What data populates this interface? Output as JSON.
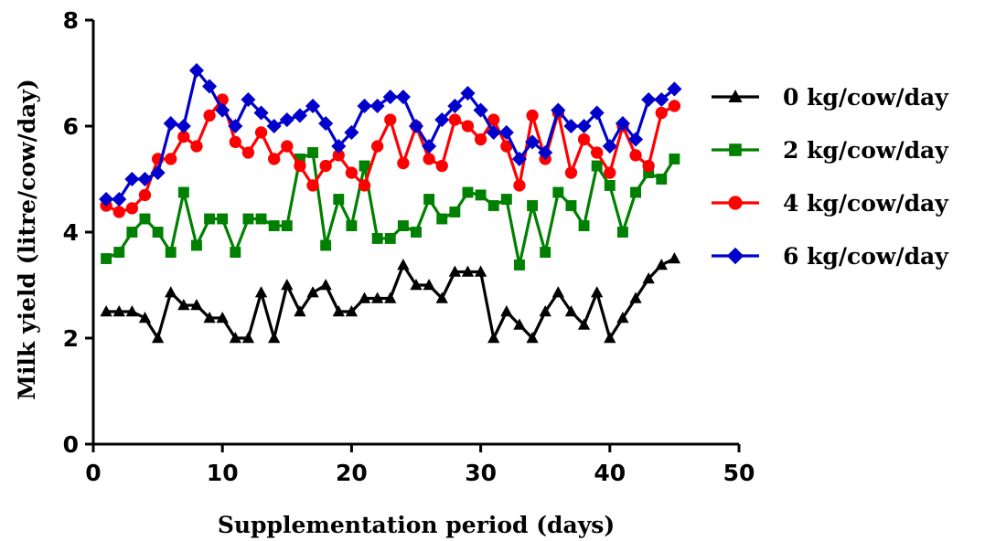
{
  "chart_data": {
    "type": "line",
    "title": "",
    "xlabel": "Supplementation period (days)",
    "ylabel": "Milk yield (litre/cow/day)",
    "xlim": [
      0,
      50
    ],
    "ylim": [
      0,
      8
    ],
    "xticks": [
      0,
      10,
      20,
      30,
      40,
      50
    ],
    "yticks": [
      0,
      2,
      4,
      6,
      8
    ],
    "grid": false,
    "legend_position": "right",
    "x": [
      1,
      2,
      3,
      4,
      5,
      6,
      7,
      8,
      9,
      10,
      11,
      12,
      13,
      14,
      15,
      16,
      17,
      18,
      19,
      20,
      21,
      22,
      23,
      24,
      25,
      26,
      27,
      28,
      29,
      30,
      31,
      32,
      33,
      34,
      35,
      36,
      37,
      38,
      39,
      40,
      41,
      42,
      43,
      44,
      45
    ],
    "series": [
      {
        "name": "0 kg/cow/day",
        "color": "#000000",
        "marker": "triangle",
        "values": [
          2.5,
          2.5,
          2.5,
          2.38,
          2.0,
          2.86,
          2.62,
          2.62,
          2.38,
          2.38,
          2.0,
          2.0,
          2.86,
          2.0,
          3.0,
          2.5,
          2.86,
          3.0,
          2.5,
          2.5,
          2.75,
          2.75,
          2.75,
          3.38,
          3.0,
          3.0,
          2.75,
          3.25,
          3.25,
          3.25,
          2.0,
          2.5,
          2.25,
          2.0,
          2.5,
          2.86,
          2.5,
          2.25,
          2.86,
          2.0,
          2.38,
          2.75,
          3.12,
          3.38,
          3.5
        ]
      },
      {
        "name": "2 kg/cow/day",
        "color": "#008000",
        "marker": "square",
        "values": [
          3.5,
          3.62,
          4.0,
          4.25,
          4.0,
          3.62,
          4.75,
          3.75,
          4.25,
          4.25,
          3.62,
          4.25,
          4.25,
          4.12,
          4.12,
          5.38,
          5.5,
          3.75,
          4.62,
          4.12,
          5.25,
          3.88,
          3.88,
          4.12,
          4.0,
          4.62,
          4.25,
          4.38,
          4.75,
          4.7,
          4.5,
          4.62,
          3.38,
          4.5,
          3.62,
          4.75,
          4.5,
          4.12,
          5.25,
          4.88,
          4.0,
          4.75,
          5.12,
          5.0,
          5.38
        ]
      },
      {
        "name": "4 kg/cow/day",
        "color": "#ff0000",
        "marker": "circle",
        "values": [
          4.5,
          4.38,
          4.45,
          4.7,
          5.38,
          5.38,
          5.8,
          5.62,
          6.2,
          6.5,
          5.7,
          5.5,
          5.88,
          5.38,
          5.62,
          5.25,
          4.88,
          5.25,
          5.45,
          5.12,
          4.88,
          5.62,
          6.12,
          5.3,
          6.0,
          5.38,
          5.25,
          6.12,
          6.0,
          5.75,
          6.12,
          5.62,
          4.88,
          6.2,
          5.38,
          6.25,
          5.12,
          5.75,
          5.5,
          5.12,
          6.0,
          5.45,
          5.25,
          6.25,
          6.38
        ]
      },
      {
        "name": "6 kg/cow/day",
        "color": "#0000cc",
        "marker": "diamond",
        "values": [
          4.62,
          4.62,
          5.0,
          5.0,
          5.12,
          6.05,
          6.0,
          7.05,
          6.75,
          6.3,
          6.0,
          6.5,
          6.25,
          6.0,
          6.12,
          6.2,
          6.38,
          6.05,
          5.62,
          5.88,
          6.38,
          6.38,
          6.55,
          6.55,
          6.0,
          5.62,
          6.12,
          6.38,
          6.62,
          6.3,
          5.88,
          5.88,
          5.38,
          5.7,
          5.5,
          6.3,
          6.0,
          6.0,
          6.25,
          5.62,
          6.05,
          5.75,
          6.5,
          6.5,
          6.7
        ]
      }
    ]
  }
}
